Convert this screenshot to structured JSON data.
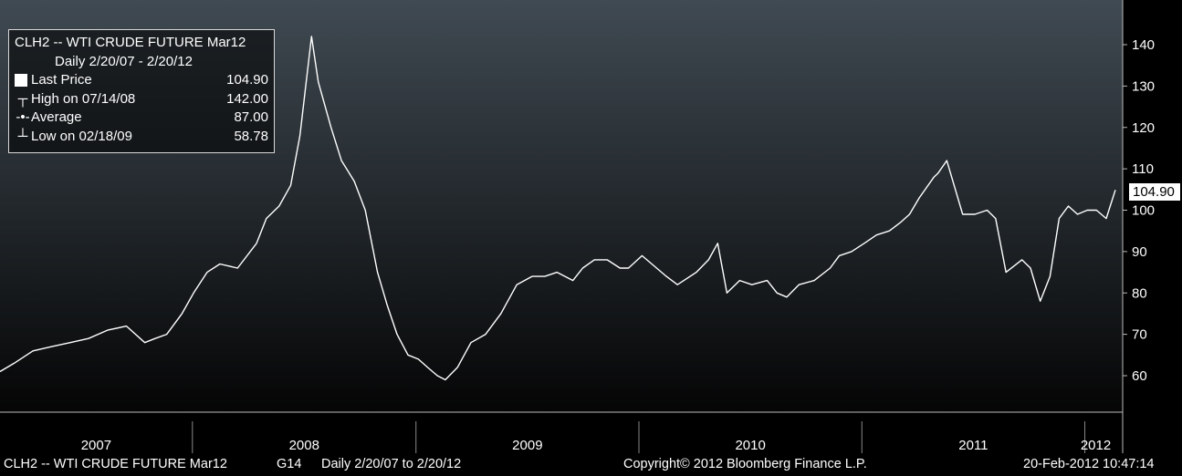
{
  "legend": {
    "title": "CLH2 -- WTI CRUDE FUTURE  Mar12",
    "subtitle": "Daily 2/20/07  -  2/20/12",
    "rows": [
      {
        "label": "Last Price",
        "value": "104.90"
      },
      {
        "label": "High on 07/14/08",
        "value": "142.00"
      },
      {
        "label": "Average",
        "value": "87.00"
      },
      {
        "label": "Low on 02/18/09",
        "value": "58.78"
      }
    ]
  },
  "last_tag": "104.90",
  "footer": {
    "left": "CLH2 -- WTI CRUDE FUTURE  Mar12",
    "code": "G14",
    "range": "Daily  2/20/07 to 2/20/12",
    "copyright": "Copyright© 2012 Bloomberg Finance L.P.",
    "timestamp": "20-Feb-2012 10:47:14"
  },
  "colors": {
    "background_top": "#404a52",
    "background_bottom": "#050505",
    "line": "#ffffff",
    "text": "#ffffff"
  },
  "chart_data": {
    "type": "line",
    "title": "CLH2 -- WTI CRUDE FUTURE  Mar12",
    "x_tick_labels": [
      "2007",
      "2008",
      "2009",
      "2010",
      "2011",
      "2012"
    ],
    "y_ticks": [
      60,
      70,
      80,
      90,
      100,
      110,
      120,
      130,
      140
    ],
    "ylim": [
      50,
      148
    ],
    "xlim": [
      "2007-02-20",
      "2012-02-20"
    ],
    "grid": false,
    "series": [
      {
        "name": "Last Price",
        "x": [
          "2007-02-20",
          "2007-03-15",
          "2007-04-15",
          "2007-05-15",
          "2007-06-15",
          "2007-07-15",
          "2007-08-15",
          "2007-09-15",
          "2007-10-15",
          "2007-11-01",
          "2007-11-20",
          "2007-12-15",
          "2008-01-03",
          "2008-01-25",
          "2008-02-15",
          "2008-03-15",
          "2008-04-15",
          "2008-05-01",
          "2008-05-22",
          "2008-06-10",
          "2008-06-25",
          "2008-07-03",
          "2008-07-14",
          "2008-07-25",
          "2008-08-15",
          "2008-09-01",
          "2008-09-22",
          "2008-10-10",
          "2008-10-30",
          "2008-11-15",
          "2008-12-01",
          "2008-12-19",
          "2009-01-05",
          "2009-01-20",
          "2009-02-05",
          "2009-02-18",
          "2009-03-10",
          "2009-04-01",
          "2009-04-25",
          "2009-05-20",
          "2009-06-15",
          "2009-07-10",
          "2009-07-31",
          "2009-08-20",
          "2009-09-15",
          "2009-10-01",
          "2009-10-20",
          "2009-11-10",
          "2009-12-01",
          "2009-12-15",
          "2010-01-06",
          "2010-01-30",
          "2010-02-15",
          "2010-03-05",
          "2010-04-05",
          "2010-04-25",
          "2010-05-10",
          "2010-05-25",
          "2010-06-15",
          "2010-07-05",
          "2010-07-30",
          "2010-08-15",
          "2010-08-31",
          "2010-09-20",
          "2010-10-15",
          "2010-11-10",
          "2010-11-25",
          "2010-12-15",
          "2011-01-05",
          "2011-01-25",
          "2011-02-15",
          "2011-03-05",
          "2011-03-20",
          "2011-04-05",
          "2011-04-29",
          "2011-05-06",
          "2011-05-20",
          "2011-06-15",
          "2011-07-05",
          "2011-07-25",
          "2011-08-08",
          "2011-08-25",
          "2011-09-20",
          "2011-10-04",
          "2011-10-20",
          "2011-11-05",
          "2011-11-20",
          "2011-12-05",
          "2011-12-20",
          "2012-01-05",
          "2012-01-20",
          "2012-02-05",
          "2012-02-20"
        ],
        "y": [
          61,
          63,
          66,
          67,
          68,
          69,
          71,
          72,
          68,
          69,
          70,
          75,
          80,
          85,
          87,
          86,
          92,
          98,
          101,
          106,
          118,
          128,
          142,
          131,
          120,
          112,
          107,
          100,
          85,
          77,
          70,
          65,
          64,
          62,
          60,
          59,
          62,
          68,
          70,
          75,
          82,
          84,
          84,
          85,
          83,
          86,
          88,
          88,
          86,
          86,
          89,
          86,
          84,
          82,
          85,
          88,
          92,
          80,
          83,
          82,
          83,
          80,
          79,
          82,
          83,
          86,
          89,
          90,
          92,
          94,
          95,
          97,
          99,
          103,
          108,
          109,
          112,
          99,
          99,
          100,
          98,
          85,
          88,
          86,
          78,
          84,
          98,
          101,
          99,
          100,
          100,
          98,
          104.9
        ]
      }
    ]
  }
}
